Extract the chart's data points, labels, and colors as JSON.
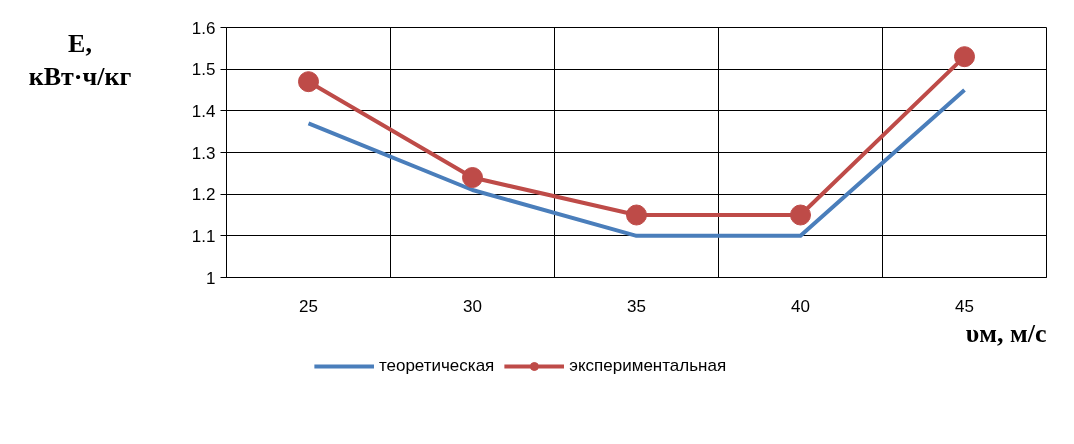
{
  "chart_data": {
    "type": "line",
    "categories": [
      "25",
      "30",
      "35",
      "40",
      "45"
    ],
    "xlabel": "υм, м/с",
    "ylabel": "E,\nкВт·ч/кг",
    "ylim": [
      1,
      1.6
    ],
    "yticks": [
      1,
      1.1,
      1.2,
      1.3,
      1.4,
      1.5,
      1.6
    ],
    "grid": true,
    "legend": "bottom",
    "line_style": "solid",
    "series": [
      {
        "name": "теоретическая",
        "color": "#4a7ebb",
        "marker": "none",
        "values": [
          1.37,
          1.21,
          1.1,
          1.1,
          1.45
        ]
      },
      {
        "name": "экспериментальная",
        "color": "#be4b48",
        "marker": "circle",
        "values": [
          1.47,
          1.24,
          1.15,
          1.15,
          1.53
        ]
      }
    ]
  }
}
